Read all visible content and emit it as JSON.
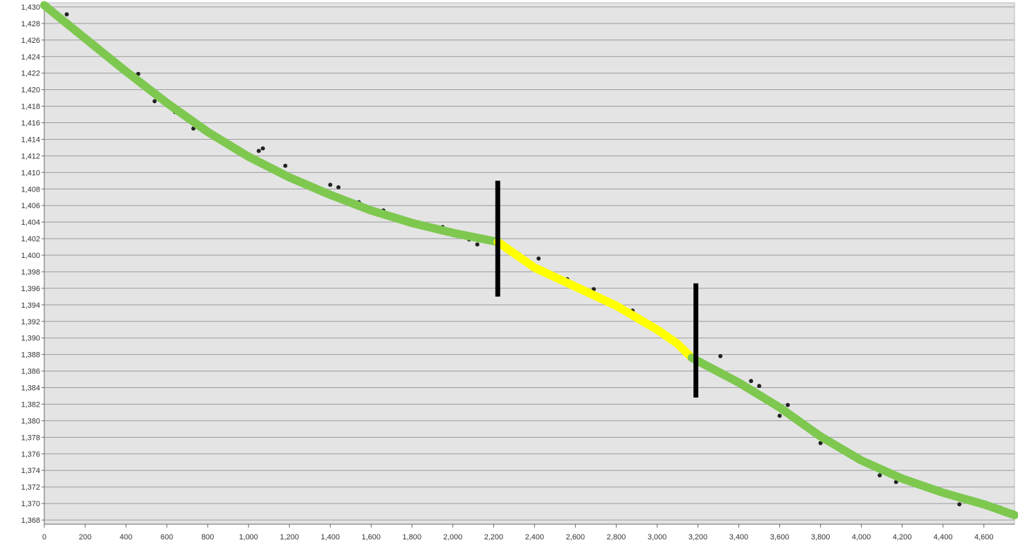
{
  "chart_data": {
    "type": "line",
    "title": "",
    "xlabel": "",
    "ylabel": "",
    "xlim": [
      0,
      4750
    ],
    "ylim": [
      1367.5,
      1430.5
    ],
    "grid": true,
    "legend": "none",
    "x_ticks": [
      0,
      200,
      400,
      600,
      800,
      1000,
      1200,
      1400,
      1600,
      1800,
      2000,
      2200,
      2400,
      2600,
      2800,
      3000,
      3200,
      3400,
      3600,
      3800,
      4000,
      4200,
      4400,
      4600
    ],
    "x_tick_labels": [
      "0",
      "200",
      "400",
      "600",
      "800",
      "1,000",
      "1,200",
      "1,400",
      "1,600",
      "1,800",
      "2,000",
      "2,200",
      "2,400",
      "2,600",
      "2,800",
      "3,000",
      "3,200",
      "3,400",
      "3,600",
      "3,800",
      "4,000",
      "4,200",
      "4,400",
      "4,600"
    ],
    "y_ticks": [
      1368,
      1370,
      1372,
      1374,
      1376,
      1378,
      1380,
      1382,
      1384,
      1386,
      1388,
      1390,
      1392,
      1394,
      1396,
      1398,
      1400,
      1402,
      1404,
      1406,
      1408,
      1410,
      1412,
      1414,
      1416,
      1418,
      1420,
      1422,
      1424,
      1426,
      1428,
      1430
    ],
    "y_tick_labels": [
      "1,368",
      "1,370",
      "1,372",
      "1,374",
      "1,376",
      "1,378",
      "1,380",
      "1,382",
      "1,384",
      "1,386",
      "1,388",
      "1,390",
      "1,392",
      "1,394",
      "1,396",
      "1,398",
      "1,400",
      "1,402",
      "1,404",
      "1,406",
      "1,408",
      "1,410",
      "1,412",
      "1,414",
      "1,416",
      "1,418",
      "1,420",
      "1,422",
      "1,424",
      "1,426",
      "1,428",
      "1,430"
    ],
    "series": [
      {
        "color": "#7ec850",
        "x": [
          0,
          200,
          400,
          600,
          800,
          1000,
          1200,
          1400,
          1600,
          1800,
          2000,
          2220
        ],
        "y": [
          1430.2,
          1426.2,
          1422.2,
          1418.4,
          1414.9,
          1411.9,
          1409.4,
          1407.3,
          1405.4,
          1403.9,
          1402.7,
          1401.6
        ]
      },
      {
        "color": "#ffff00",
        "x": [
          2220,
          2400,
          2600,
          2800,
          3000,
          3100,
          3170
        ],
        "y": [
          1401.6,
          1398.5,
          1396.2,
          1393.9,
          1391.0,
          1389.3,
          1387.6
        ]
      },
      {
        "color": "#7ec850",
        "x": [
          3170,
          3400,
          3600,
          3800,
          4000,
          4200,
          4400,
          4600,
          4750
        ],
        "y": [
          1387.6,
          1384.6,
          1381.6,
          1378.1,
          1375.2,
          1373.0,
          1371.3,
          1369.9,
          1368.6
        ]
      }
    ],
    "noisy_points": {
      "color": "#222222",
      "x": [
        110,
        240,
        330,
        460,
        540,
        640,
        730,
        1050,
        1070,
        1180,
        1380,
        1400,
        1440,
        1540,
        1660,
        1760,
        1950,
        2080,
        2120,
        2250,
        2320,
        2420,
        2490,
        2560,
        2640,
        2690,
        2780,
        2830,
        2880,
        3310,
        3460,
        3500,
        3600,
        3640,
        3800,
        3920,
        4090,
        4170,
        4480,
        4680
      ],
      "y": [
        1429.1,
        1425.5,
        1423.7,
        1421.9,
        1418.6,
        1417.3,
        1415.3,
        1412.6,
        1412.9,
        1410.8,
        1407.4,
        1408.5,
        1408.2,
        1406.4,
        1405.4,
        1404.3,
        1403.4,
        1401.9,
        1401.3,
        1400.9,
        1400.2,
        1399.6,
        1397.5,
        1397.1,
        1395.5,
        1395.9,
        1394.2,
        1393.7,
        1393.3,
        1387.8,
        1384.8,
        1384.2,
        1380.6,
        1381.9,
        1377.3,
        1376.2,
        1373.4,
        1372.6,
        1369.9,
        1369.5
      ]
    },
    "markers": [
      {
        "x": 2220,
        "y_min": 1395.0,
        "y_max": 1409.0,
        "color": "#000000"
      },
      {
        "x": 3190,
        "y_min": 1382.8,
        "y_max": 1396.6,
        "color": "#000000"
      }
    ]
  }
}
